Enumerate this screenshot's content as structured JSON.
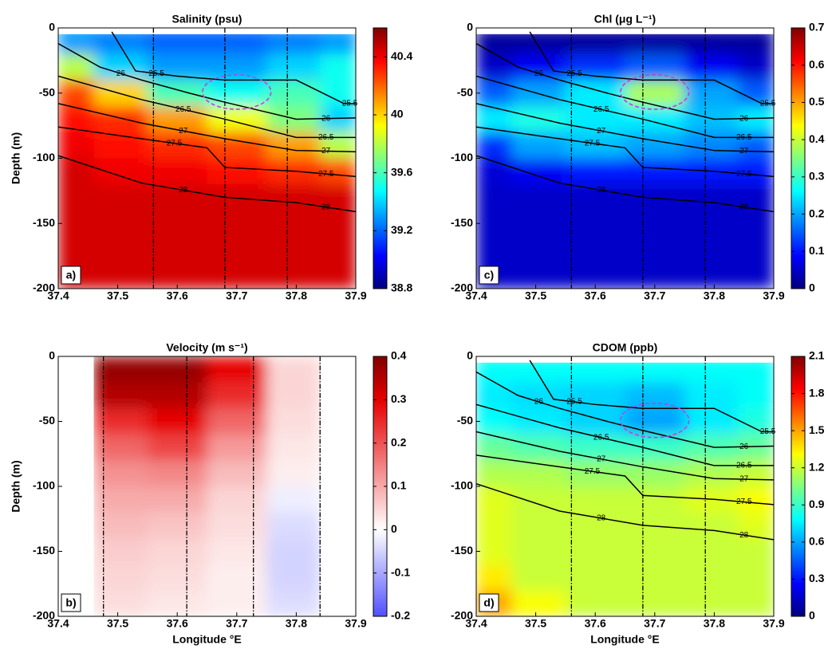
{
  "chart_data": [
    {
      "type": "heatmap",
      "title": "Salinity (psu)",
      "ylabel": "Depth (m)",
      "panel": "a)",
      "colormap": "jet",
      "xlim": [
        37.4,
        37.9
      ],
      "ylim": [
        -200,
        0
      ],
      "xticks": [
        37.4,
        37.5,
        37.6,
        37.7,
        37.8,
        37.9
      ],
      "yticks": [
        0,
        -50,
        -100,
        -150,
        -200
      ],
      "clim": [
        38.8,
        40.6
      ],
      "cticks": [
        38.8,
        39.2,
        39.6,
        40,
        40.4
      ],
      "x": [
        37.42,
        37.5,
        37.6,
        37.7,
        37.8,
        37.88
      ],
      "y": [
        -10,
        -30,
        -50,
        -70,
        -90,
        -110,
        -130,
        -150,
        -170,
        -190
      ],
      "z": [
        [
          39.3,
          39.25,
          39.2,
          39.2,
          39.25,
          39.3
        ],
        [
          39.8,
          39.4,
          39.3,
          39.3,
          39.4,
          39.5
        ],
        [
          40.25,
          40.0,
          39.6,
          39.5,
          39.6,
          39.5
        ],
        [
          40.35,
          40.3,
          40.1,
          39.9,
          39.7,
          39.4
        ],
        [
          40.4,
          40.35,
          40.3,
          40.25,
          40.1,
          39.8
        ],
        [
          40.45,
          40.4,
          40.4,
          40.35,
          40.3,
          40.25
        ],
        [
          40.45,
          40.45,
          40.45,
          40.45,
          40.45,
          40.45
        ],
        [
          40.45,
          40.45,
          40.45,
          40.45,
          40.45,
          40.45
        ],
        [
          40.45,
          40.45,
          40.45,
          40.45,
          40.45,
          40.45
        ],
        [
          40.45,
          40.45,
          40.45,
          40.45,
          40.45,
          40.45
        ]
      ],
      "stations": [
        37.56,
        37.68,
        37.785
      ],
      "contours": [
        {
          "level": 25.5,
          "x": [
            37.49,
            37.53,
            37.6,
            37.68,
            37.8,
            37.88,
            37.9
          ],
          "y": [
            -3,
            -33,
            -37,
            -40,
            -40,
            -58,
            -58
          ]
        },
        {
          "level": 26,
          "x": [
            37.4,
            37.47,
            37.54,
            37.62,
            37.68,
            37.8,
            37.9
          ],
          "y": [
            -12,
            -30,
            -40,
            -50,
            -57,
            -70,
            -69
          ]
        },
        {
          "level": 26.5,
          "x": [
            37.4,
            37.54,
            37.68,
            37.8,
            37.9
          ],
          "y": [
            -37,
            -55,
            -70,
            -84,
            -84
          ]
        },
        {
          "level": 27,
          "x": [
            37.4,
            37.54,
            37.68,
            37.8,
            37.9
          ],
          "y": [
            -58,
            -73,
            -85,
            -94,
            -95
          ]
        },
        {
          "level": 27.5,
          "x": [
            37.4,
            37.54,
            37.65,
            37.68,
            37.8,
            37.9
          ],
          "y": [
            -76,
            -85,
            -92,
            -107,
            -110,
            -114
          ]
        },
        {
          "level": 28,
          "x": [
            37.4,
            37.54,
            37.68,
            37.8,
            37.9
          ],
          "y": [
            -98,
            -119,
            -130,
            -134,
            -141
          ]
        }
      ]
    },
    {
      "type": "heatmap",
      "title": "Chl (μg L⁻¹)",
      "panel": "c)",
      "colormap": "jet",
      "xlim": [
        37.4,
        37.9
      ],
      "ylim": [
        -200,
        0
      ],
      "xticks": [
        37.4,
        37.5,
        37.6,
        37.7,
        37.8,
        37.9
      ],
      "yticks": [
        0,
        -50,
        -100,
        -150,
        -200
      ],
      "clim": [
        0,
        0.7
      ],
      "cticks": [
        0,
        0.1,
        0.2,
        0.3,
        0.4,
        0.5,
        0.6,
        0.7
      ],
      "x": [
        37.42,
        37.5,
        37.6,
        37.7,
        37.8,
        37.88
      ],
      "y": [
        -10,
        -30,
        -50,
        -70,
        -90,
        -110,
        -130,
        -150,
        -170,
        -190
      ],
      "z": [
        [
          0.02,
          0.02,
          0.02,
          0.02,
          0.02,
          0.02
        ],
        [
          0.05,
          0.08,
          0.12,
          0.15,
          0.08,
          0.05
        ],
        [
          0.15,
          0.2,
          0.25,
          0.38,
          0.2,
          0.15
        ],
        [
          0.25,
          0.28,
          0.25,
          0.25,
          0.22,
          0.25
        ],
        [
          0.12,
          0.2,
          0.22,
          0.2,
          0.18,
          0.15
        ],
        [
          0.06,
          0.08,
          0.1,
          0.1,
          0.1,
          0.1
        ],
        [
          0.05,
          0.05,
          0.05,
          0.05,
          0.05,
          0.05
        ],
        [
          0.05,
          0.05,
          0.05,
          0.05,
          0.05,
          0.05
        ],
        [
          0.05,
          0.05,
          0.05,
          0.05,
          0.05,
          0.05
        ],
        [
          0.05,
          0.05,
          0.05,
          0.05,
          0.05,
          0.05
        ]
      ],
      "stations": [
        37.56,
        37.68,
        37.785
      ],
      "contours": [
        {
          "level": 25.5,
          "x": [
            37.49,
            37.53,
            37.6,
            37.68,
            37.8,
            37.88,
            37.9
          ],
          "y": [
            -3,
            -33,
            -37,
            -40,
            -40,
            -58,
            -58
          ]
        },
        {
          "level": 26,
          "x": [
            37.4,
            37.47,
            37.54,
            37.62,
            37.68,
            37.8,
            37.9
          ],
          "y": [
            -12,
            -30,
            -40,
            -50,
            -57,
            -70,
            -69
          ]
        },
        {
          "level": 26.5,
          "x": [
            37.4,
            37.54,
            37.68,
            37.8,
            37.9
          ],
          "y": [
            -37,
            -55,
            -70,
            -84,
            -84
          ]
        },
        {
          "level": 27,
          "x": [
            37.4,
            37.54,
            37.68,
            37.8,
            37.9
          ],
          "y": [
            -58,
            -73,
            -85,
            -94,
            -95
          ]
        },
        {
          "level": 27.5,
          "x": [
            37.4,
            37.54,
            37.65,
            37.68,
            37.8,
            37.9
          ],
          "y": [
            -76,
            -85,
            -92,
            -107,
            -110,
            -114
          ]
        },
        {
          "level": 28,
          "x": [
            37.4,
            37.54,
            37.68,
            37.8,
            37.9
          ],
          "y": [
            -98,
            -119,
            -130,
            -134,
            -141
          ]
        }
      ]
    },
    {
      "type": "heatmap",
      "title": "Velocity (m s⁻¹)",
      "ylabel": "Depth (m)",
      "xlabel": "Longitude °E",
      "panel": "b)",
      "colormap": "bwr",
      "xlim": [
        37.4,
        37.9
      ],
      "ylim": [
        -200,
        0
      ],
      "xticks": [
        37.4,
        37.5,
        37.6,
        37.7,
        37.8,
        37.9
      ],
      "yticks": [
        0,
        -50,
        -100,
        -150,
        -200
      ],
      "clim": [
        -0.2,
        0.4
      ],
      "cticks": [
        -0.2,
        -0.1,
        0,
        0.1,
        0.2,
        0.3,
        0.4
      ],
      "x": [
        37.42,
        37.5,
        37.6,
        37.7,
        37.8,
        37.88
      ],
      "y": [
        -10,
        -30,
        -50,
        -70,
        -90,
        -110,
        -130,
        -150,
        -170,
        -190
      ],
      "z": [
        [
          null,
          0.38,
          0.38,
          0.3,
          0.05,
          null
        ],
        [
          null,
          0.35,
          0.35,
          0.25,
          0.05,
          null
        ],
        [
          null,
          0.25,
          0.3,
          0.18,
          0.04,
          null
        ],
        [
          null,
          0.18,
          0.22,
          0.12,
          0.03,
          null
        ],
        [
          null,
          0.13,
          0.14,
          0.08,
          0.02,
          null
        ],
        [
          null,
          0.1,
          0.1,
          0.05,
          -0.02,
          null
        ],
        [
          null,
          0.08,
          0.07,
          0.04,
          -0.04,
          null
        ],
        [
          null,
          0.06,
          0.05,
          0.03,
          -0.05,
          null
        ],
        [
          null,
          0.05,
          0.04,
          0.02,
          -0.05,
          null
        ],
        [
          null,
          0.04,
          0.03,
          0.02,
          -0.04,
          null
        ]
      ],
      "stations": [
        37.476,
        37.616,
        37.728,
        37.84
      ]
    },
    {
      "type": "heatmap",
      "title": "CDOM (ppb)",
      "xlabel": "Longitude °E",
      "panel": "d)",
      "colormap": "jet",
      "xlim": [
        37.4,
        37.9
      ],
      "ylim": [
        -200,
        0
      ],
      "xticks": [
        37.4,
        37.5,
        37.6,
        37.7,
        37.8,
        37.9
      ],
      "yticks": [
        0,
        -50,
        -100,
        -150,
        -200
      ],
      "clim": [
        0,
        2.1
      ],
      "cticks": [
        0,
        0.3,
        0.6,
        0.9,
        1.2,
        1.5,
        1.8,
        2.1
      ],
      "x": [
        37.42,
        37.5,
        37.6,
        37.7,
        37.8,
        37.88
      ],
      "y": [
        -10,
        -30,
        -50,
        -70,
        -90,
        -110,
        -130,
        -150,
        -170,
        -190
      ],
      "z": [
        [
          0.8,
          0.8,
          0.8,
          0.8,
          0.8,
          0.8
        ],
        [
          0.75,
          0.72,
          0.7,
          0.65,
          0.75,
          0.8
        ],
        [
          0.8,
          0.75,
          0.7,
          0.6,
          0.75,
          0.85
        ],
        [
          1.0,
          0.95,
          0.9,
          0.9,
          0.95,
          1.0
        ],
        [
          1.15,
          1.15,
          1.1,
          1.1,
          1.15,
          1.2
        ],
        [
          1.25,
          1.2,
          1.2,
          1.2,
          1.25,
          1.3
        ],
        [
          1.25,
          1.2,
          1.2,
          1.2,
          1.2,
          1.25
        ],
        [
          1.25,
          1.2,
          1.2,
          1.2,
          1.2,
          1.2
        ],
        [
          1.35,
          1.2,
          1.2,
          1.2,
          1.2,
          1.2
        ],
        [
          1.5,
          1.3,
          1.2,
          1.2,
          1.2,
          1.2
        ]
      ],
      "stations": [
        37.56,
        37.68,
        37.785
      ],
      "contours": [
        {
          "level": 25.5,
          "x": [
            37.49,
            37.53,
            37.6,
            37.68,
            37.8,
            37.88,
            37.9
          ],
          "y": [
            -3,
            -33,
            -37,
            -40,
            -40,
            -58,
            -58
          ]
        },
        {
          "level": 26,
          "x": [
            37.4,
            37.47,
            37.54,
            37.62,
            37.68,
            37.8,
            37.9
          ],
          "y": [
            -12,
            -30,
            -40,
            -50,
            -57,
            -70,
            -69
          ]
        },
        {
          "level": 26.5,
          "x": [
            37.4,
            37.54,
            37.68,
            37.8,
            37.9
          ],
          "y": [
            -37,
            -55,
            -70,
            -84,
            -84
          ]
        },
        {
          "level": 27,
          "x": [
            37.4,
            37.54,
            37.68,
            37.8,
            37.9
          ],
          "y": [
            -58,
            -73,
            -85,
            -94,
            -95
          ]
        },
        {
          "level": 27.5,
          "x": [
            37.4,
            37.54,
            37.65,
            37.68,
            37.8,
            37.9
          ],
          "y": [
            -76,
            -85,
            -92,
            -107,
            -110,
            -114
          ]
        },
        {
          "level": 28,
          "x": [
            37.4,
            37.54,
            37.68,
            37.8,
            37.9
          ],
          "y": [
            -98,
            -119,
            -130,
            -134,
            -141
          ]
        }
      ]
    }
  ]
}
